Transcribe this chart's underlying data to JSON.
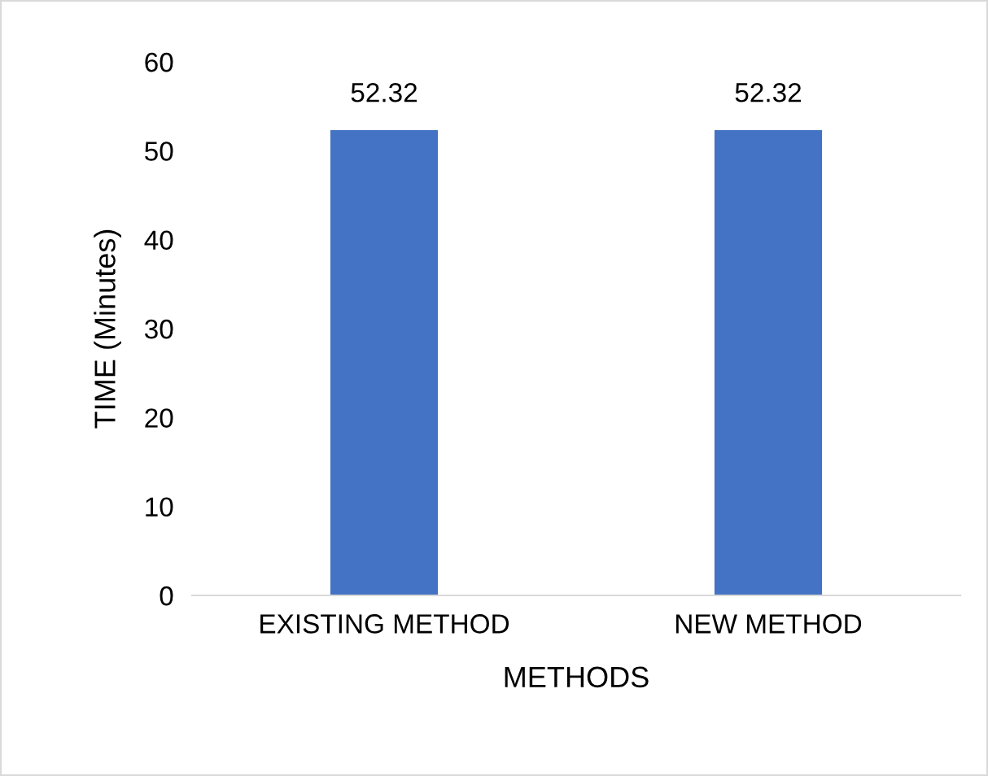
{
  "chart_data": {
    "type": "bar",
    "xlabel": "METHODS",
    "ylabel": "TIME (Minutes)",
    "categories": [
      "EXISTING METHOD",
      "NEW METHOD"
    ],
    "values": [
      52.32,
      52.32
    ],
    "color": "#4472c4",
    "ylim": [
      0,
      60
    ],
    "yticks": [
      0,
      10,
      20,
      30,
      40,
      50,
      60
    ],
    "grid": false,
    "data_labels": true
  }
}
